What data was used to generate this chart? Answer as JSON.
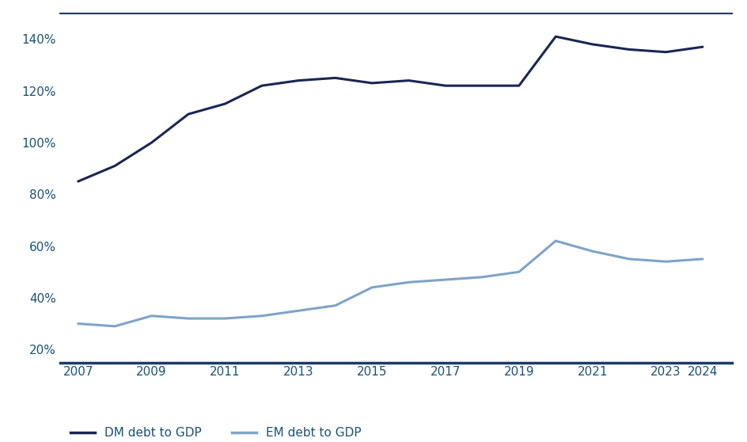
{
  "years": [
    2007,
    2008,
    2009,
    2010,
    2011,
    2012,
    2013,
    2014,
    2015,
    2016,
    2017,
    2018,
    2019,
    2020,
    2021,
    2022,
    2023,
    2024
  ],
  "dm_debt": [
    85,
    91,
    100,
    111,
    115,
    122,
    124,
    125,
    123,
    124,
    122,
    122,
    122,
    141,
    138,
    136,
    135,
    137
  ],
  "em_debt": [
    30,
    29,
    33,
    32,
    32,
    33,
    35,
    37,
    44,
    46,
    47,
    48,
    50,
    62,
    58,
    55,
    54,
    55
  ],
  "dm_color": "#1a2654",
  "em_color": "#7fa3c8",
  "border_color": "#1a3a6b",
  "yticks": [
    20,
    40,
    60,
    80,
    100,
    120,
    140
  ],
  "xtick_labels": [
    "2007",
    "2009",
    "2011",
    "2013",
    "2015",
    "2017",
    "2019",
    "2021",
    "2023",
    "2024"
  ],
  "xtick_positions": [
    2007,
    2009,
    2011,
    2013,
    2015,
    2017,
    2019,
    2021,
    2023,
    2024
  ],
  "ylim": [
    15,
    150
  ],
  "xlim": [
    2006.5,
    2024.8
  ],
  "dm_label": "DM debt to GDP",
  "em_label": "EM debt to GDP",
  "dm_linewidth": 2.2,
  "em_linewidth": 2.2,
  "tick_label_color": "#1a5276",
  "label_color": "#1a5276",
  "tick_fontsize": 11,
  "legend_fontsize": 11
}
